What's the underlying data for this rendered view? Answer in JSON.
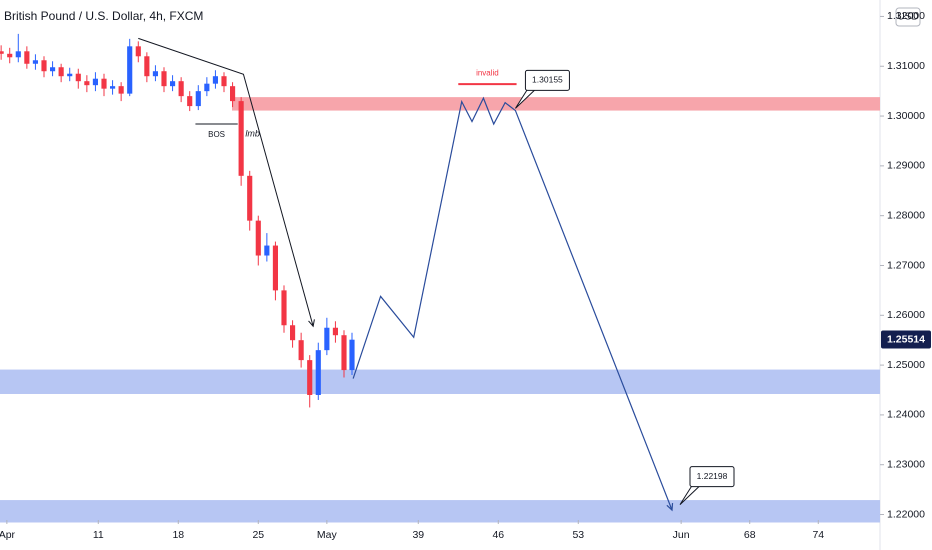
{
  "chart_data": {
    "type": "candlestick",
    "title": "British Pound / U.S. Dollar, 4h, FXCM",
    "currency": "USD",
    "up_color": "#2962ff",
    "down_color": "#f23645",
    "xlim": [
      2.4,
      79.4
    ],
    "ylim": [
      1.2189,
      1.3233
    ],
    "xticks": [
      {
        "value": 3,
        "label": "Apr"
      },
      11,
      18,
      25,
      {
        "value": 31,
        "label": "May"
      },
      39,
      46,
      53,
      {
        "value": 62,
        "label": "Jun"
      },
      68,
      74
    ],
    "yticks": [
      {
        "value": 1.32,
        "label": "1.32000"
      },
      {
        "value": 1.31,
        "label": "1.31000"
      },
      {
        "value": 1.3,
        "label": "1.30000"
      },
      {
        "value": 1.29,
        "label": "1.29000"
      },
      {
        "value": 1.28,
        "label": "1.28000"
      },
      {
        "value": 1.27,
        "label": "1.27000"
      },
      {
        "value": 1.26,
        "label": "1.26000"
      },
      {
        "value": 1.25,
        "label": "1.25000"
      },
      {
        "value": 1.24,
        "label": "1.24000"
      },
      {
        "value": 1.23,
        "label": "1.23000"
      },
      {
        "value": 1.22,
        "label": "1.22000"
      }
    ],
    "candles": {
      "x": [
        2.5,
        3.25,
        4,
        4.75,
        5.5,
        6.25,
        7,
        7.75,
        8.5,
        9.25,
        10,
        10.75,
        11.5,
        12.25,
        13,
        13.75,
        14.5,
        15.25,
        16,
        16.75,
        17.5,
        18.25,
        19,
        19.75,
        20.5,
        21.25,
        22,
        22.75,
        23.5,
        24.25,
        25,
        25.75,
        26.5,
        27.25,
        28,
        28.75,
        29.5,
        30.25,
        31,
        31.75,
        32.5,
        33.2
      ],
      "open": [
        1.313,
        1.3125,
        1.3118,
        1.313,
        1.3105,
        1.3112,
        1.309,
        1.3098,
        1.308,
        1.3085,
        1.307,
        1.3062,
        1.3075,
        1.3055,
        1.306,
        1.3045,
        1.314,
        1.312,
        1.308,
        1.309,
        1.306,
        1.307,
        1.304,
        1.302,
        1.305,
        1.3065,
        1.308,
        1.306,
        1.303,
        1.288,
        1.279,
        1.272,
        1.274,
        1.265,
        1.258,
        1.255,
        1.251,
        1.244,
        1.253,
        1.2575,
        1.256,
        1.249
      ],
      "high": [
        1.3142,
        1.3137,
        1.3165,
        1.314,
        1.3124,
        1.312,
        1.311,
        1.3105,
        1.3097,
        1.3095,
        1.3082,
        1.3088,
        1.3085,
        1.3072,
        1.3068,
        1.3155,
        1.315,
        1.3128,
        1.3102,
        1.3098,
        1.3082,
        1.3078,
        1.305,
        1.3062,
        1.3078,
        1.3092,
        1.3088,
        1.3068,
        1.3038,
        1.289,
        1.28,
        1.2765,
        1.2748,
        1.266,
        1.259,
        1.2565,
        1.252,
        1.2545,
        1.2595,
        1.2588,
        1.257,
        1.2565
      ],
      "low": [
        1.3113,
        1.3106,
        1.3108,
        1.3095,
        1.3093,
        1.3078,
        1.308,
        1.3068,
        1.307,
        1.3055,
        1.3048,
        1.305,
        1.304,
        1.3043,
        1.303,
        1.304,
        1.3108,
        1.3068,
        1.307,
        1.3048,
        1.305,
        1.3028,
        1.301,
        1.3012,
        1.304,
        1.3055,
        1.3048,
        1.3018,
        1.286,
        1.277,
        1.27,
        1.2708,
        1.263,
        1.2565,
        1.2535,
        1.2495,
        1.2415,
        1.243,
        1.252,
        1.2545,
        1.2475,
        1.248
      ],
      "close": [
        1.3125,
        1.3118,
        1.313,
        1.3105,
        1.3112,
        1.309,
        1.3098,
        1.308,
        1.3085,
        1.307,
        1.3062,
        1.3075,
        1.3055,
        1.306,
        1.3045,
        1.314,
        1.312,
        1.308,
        1.309,
        1.306,
        1.307,
        1.304,
        1.302,
        1.305,
        1.3065,
        1.308,
        1.306,
        1.303,
        1.288,
        1.279,
        1.272,
        1.274,
        1.265,
        1.258,
        1.255,
        1.251,
        1.244,
        1.253,
        1.2575,
        1.256,
        1.249,
        1.2551
      ]
    },
    "last_price": 1.25514,
    "zones": [
      {
        "color": "#f7a5ab",
        "x_start": 22.7,
        "top": 1.3038,
        "bottom": 1.3011
      },
      {
        "color": "#b7c6f3",
        "x_start": 2.4,
        "top": 1.2491,
        "bottom": 1.2442
      },
      {
        "color": "#b7c6f3",
        "x_start": 2.4,
        "top": 1.2229,
        "bottom": 1.2184
      }
    ],
    "trend_line": {
      "color": "#131722",
      "x": [
        14.5,
        23.7,
        29.8
      ],
      "y": [
        1.3156,
        1.3084,
        1.2578
      ]
    },
    "projection": {
      "color": "#2a4c9c",
      "x": [
        33.3,
        35.7,
        38.6,
        42.8,
        43.7,
        44.7,
        45.6,
        46.6,
        47.5,
        61.2
      ],
      "y": [
        1.2473,
        1.2638,
        1.2556,
        1.3029,
        1.2989,
        1.3036,
        1.2984,
        1.3027,
        1.3011,
        1.2209
      ]
    },
    "bos": {
      "label": "BOS",
      "x": [
        19.5,
        23.2
      ],
      "y": 1.2984
    },
    "lmb": "lmb",
    "invalid": {
      "label": "invalid",
      "color": "#f23645",
      "x": [
        42.5,
        47.6
      ],
      "y": 1.3064
    },
    "callouts": [
      {
        "value": 1.30155,
        "x": 47.5
      },
      {
        "value": 1.22198,
        "x": 61.9
      }
    ]
  }
}
